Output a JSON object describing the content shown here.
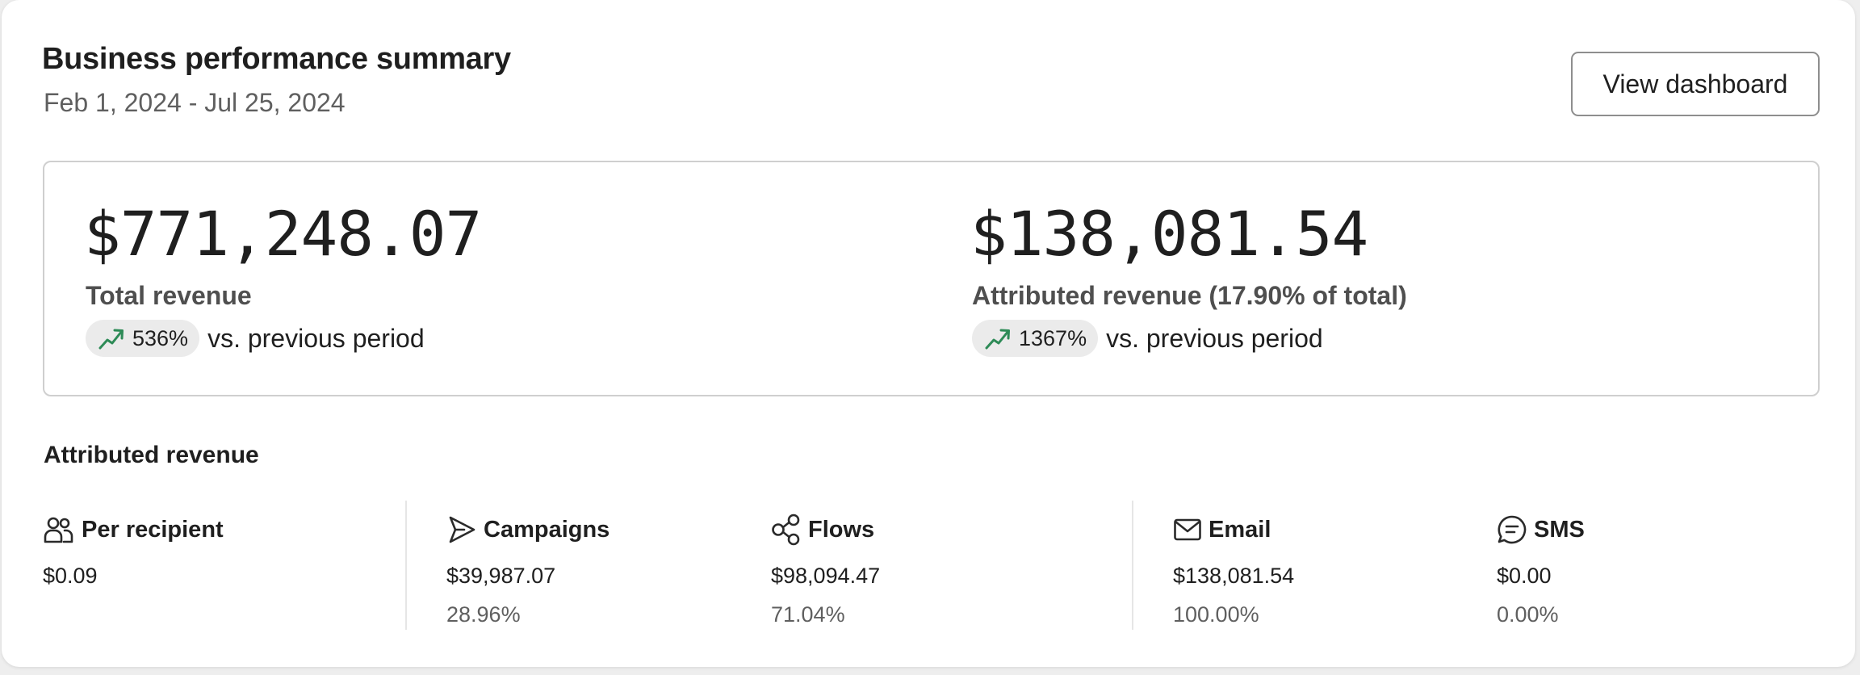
{
  "header": {
    "title": "Business performance summary",
    "date_range": "Feb 1, 2024 - Jul 25, 2024",
    "view_dashboard_label": "View dashboard"
  },
  "summary": {
    "total": {
      "value": "$771,248.07",
      "label": "Total revenue",
      "trend_percent": "536%",
      "trend_suffix": "vs. previous period",
      "trend_icon": "trend-up-icon"
    },
    "attributed": {
      "value": "$138,081.54",
      "label": "Attributed revenue (17.90% of total)",
      "trend_percent": "1367%",
      "trend_suffix": "vs. previous period",
      "trend_icon": "trend-up-icon"
    }
  },
  "attributed_section": {
    "title": "Attributed revenue",
    "columns": [
      {
        "icon": "users-icon",
        "label": "Per recipient",
        "value": "$0.09",
        "share": ""
      },
      {
        "icon": "send-icon",
        "label": "Campaigns",
        "value": "$39,987.07",
        "share": "28.96%"
      },
      {
        "icon": "flows-icon",
        "label": "Flows",
        "value": "$98,094.47",
        "share": "71.04%"
      },
      {
        "icon": "mail-icon",
        "label": "Email",
        "value": "$138,081.54",
        "share": "100.00%"
      },
      {
        "icon": "chat-icon",
        "label": "SMS",
        "value": "$0.00",
        "share": "0.00%"
      }
    ]
  },
  "colors": {
    "trend_up": "#2e8b57",
    "pill_background": "#ebebeb",
    "border": "#cfcfcf"
  }
}
